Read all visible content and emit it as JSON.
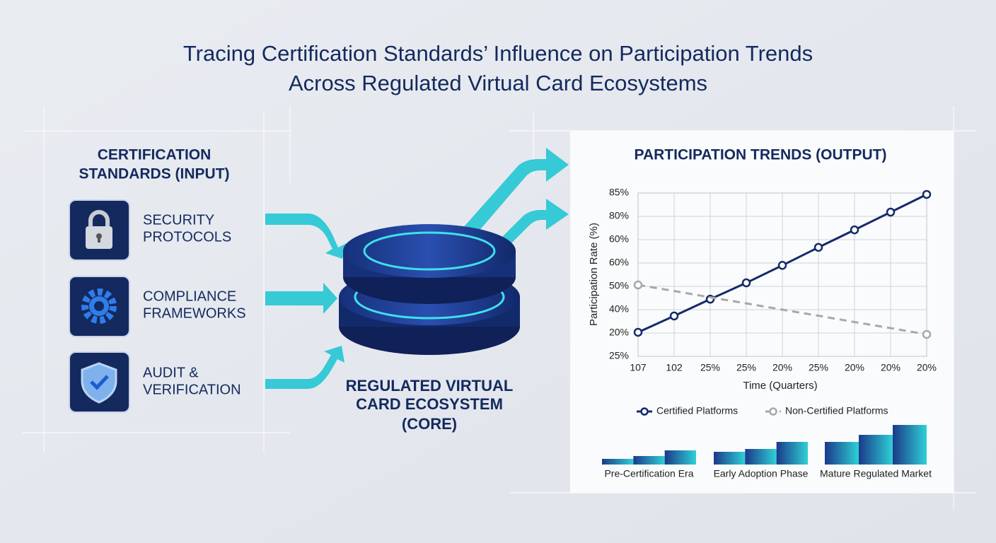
{
  "title": [
    "Tracing Certification Standards’ Influence on Participation Trends",
    "Across Regulated Virtual Card Ecosystems"
  ],
  "input": {
    "heading": [
      "CERTIFICATION",
      "STANDARDS (INPUT)"
    ],
    "items": [
      {
        "label": [
          "SECURITY",
          "PROTOCOLS"
        ]
      },
      {
        "label": [
          "COMPLIANCE",
          "FRAMEWORKS"
        ]
      },
      {
        "label": [
          "AUDIT &",
          "VERIFICATION"
        ]
      }
    ]
  },
  "core": {
    "label": [
      "REGULATED VIRTUAL",
      "CARD ECOSYSTEM",
      "(CORE)"
    ]
  },
  "output": {
    "heading": "PARTICIPATION TRENDS (OUTPUT)",
    "chart_data": {
      "type": "line",
      "x_label": "Time (Quarters)",
      "y_label": "Participation Rate (%)",
      "categories": [
        "107",
        "102",
        "25%",
        "25%",
        "20%",
        "25%",
        "20%",
        "20%",
        "20%"
      ],
      "ylim": [
        0,
        7
      ],
      "yticks": [
        {
          "value": 0,
          "label": "25%"
        },
        {
          "value": 1,
          "label": "20%"
        },
        {
          "value": 2,
          "label": "40%"
        },
        {
          "value": 3,
          "label": "50%"
        },
        {
          "value": 4,
          "label": "60%"
        },
        {
          "value": 5,
          "label": "60%"
        },
        {
          "value": 6,
          "label": "80%"
        },
        {
          "value": 7,
          "label": "85%"
        }
      ],
      "grid": true,
      "series": [
        {
          "name": "Certified Platforms",
          "color": "#142a6b",
          "dashed": false,
          "markers": "all",
          "values": [
            1.03,
            1.73,
            2.45,
            3.15,
            3.9,
            4.67,
            5.42,
            6.18,
            6.94
          ]
        },
        {
          "name": "Non-Certified Platforms",
          "color": "#a8a8a8",
          "dashed": true,
          "markers": "endpoints",
          "values": [
            3.06,
            2.8,
            2.53,
            2.27,
            2.0,
            1.74,
            1.47,
            1.21,
            0.94
          ]
        }
      ]
    },
    "phase_chart": {
      "type": "bar",
      "categories": [
        "Pre-Certification Era",
        "Early Adoption Phase",
        "Mature Regulated Market"
      ],
      "values": [
        [
          8,
          12,
          20
        ],
        [
          18,
          22,
          32
        ],
        [
          32,
          42,
          56
        ]
      ],
      "ylim": [
        0,
        60
      ]
    }
  }
}
